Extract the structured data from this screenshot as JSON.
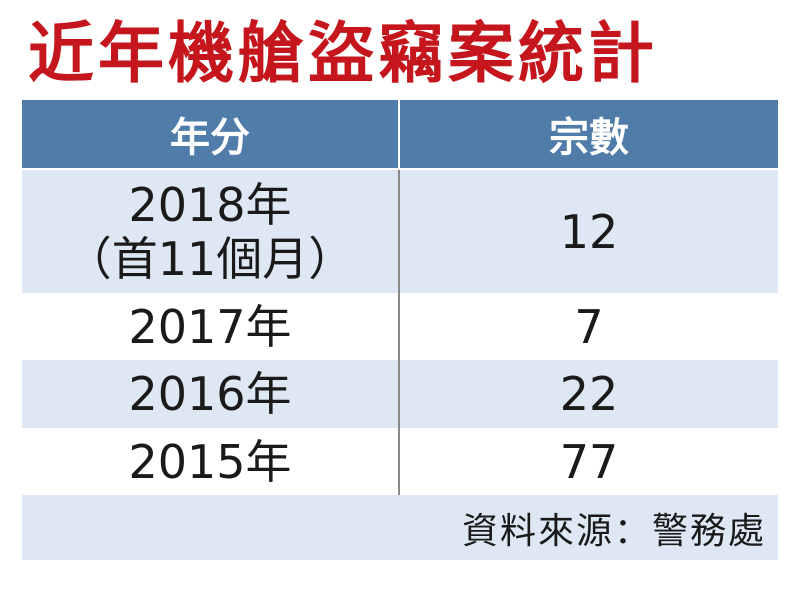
{
  "title": "近年機艙盜竊案統計",
  "table": {
    "header": [
      "年分",
      "宗數"
    ],
    "rows": [
      {
        "year": [
          "2018年",
          "（首11個月）"
        ],
        "count": 12
      },
      {
        "year": [
          "2017年"
        ],
        "count": 7
      },
      {
        "year": [
          "2016年"
        ],
        "count": 22
      },
      {
        "year": [
          "2015年"
        ],
        "count": 77
      }
    ]
  },
  "source": "資料來源：警務處"
}
